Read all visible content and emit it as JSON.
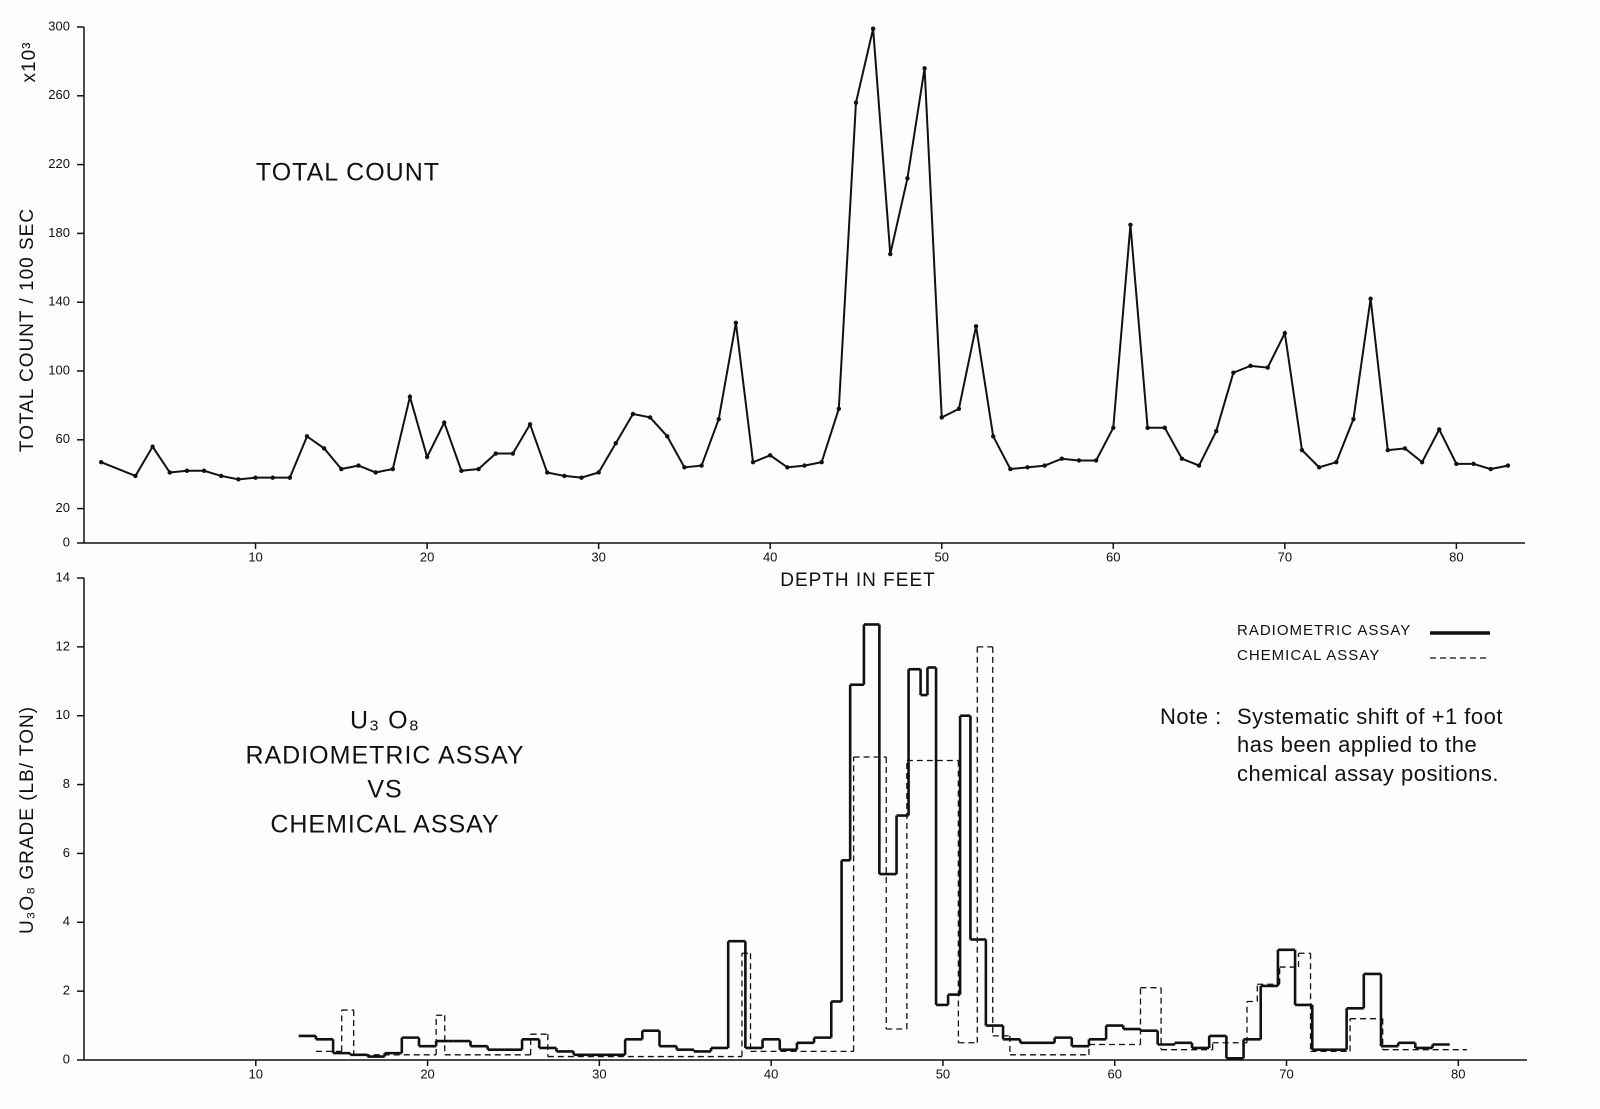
{
  "chart_data": [
    {
      "type": "line",
      "annotation": "TOTAL COUNT",
      "ylabel": "TOTAL COUNT / 100 SEC",
      "ylabel_unit": "x10³",
      "xlabel": "DEPTH IN FEET",
      "xlim": [
        0,
        84
      ],
      "xticks": [
        10,
        20,
        30,
        40,
        50,
        60,
        70,
        80
      ],
      "ylim": [
        0,
        300
      ],
      "yticks": [
        0,
        20,
        60,
        100,
        140,
        180,
        220,
        260,
        300
      ],
      "color": "#111111",
      "x": [
        1,
        3,
        4,
        5,
        6,
        7,
        8,
        9,
        10,
        11,
        12,
        13,
        14,
        15,
        16,
        17,
        18,
        19,
        20,
        21,
        22,
        23,
        24,
        25,
        26,
        27,
        28,
        29,
        30,
        31,
        32,
        33,
        34,
        35,
        36,
        37,
        38,
        39,
        40,
        41,
        42,
        43,
        44,
        45,
        46,
        47,
        48,
        49,
        50,
        51,
        52,
        53,
        54,
        55,
        56,
        57,
        58,
        59,
        60,
        61,
        62,
        63,
        64,
        65,
        66,
        67,
        68,
        69,
        70,
        71,
        72,
        73,
        74,
        75,
        76,
        77,
        78,
        79,
        80,
        81,
        82,
        83
      ],
      "values": [
        47,
        39,
        56,
        41,
        42,
        42,
        39,
        37,
        38,
        38,
        38,
        62,
        55,
        43,
        45,
        41,
        43,
        85,
        50,
        70,
        42,
        43,
        52,
        52,
        69,
        41,
        39,
        38,
        41,
        58,
        75,
        73,
        62,
        44,
        45,
        72,
        128,
        47,
        51,
        44,
        45,
        47,
        78,
        256,
        299,
        168,
        212,
        276,
        73,
        78,
        126,
        62,
        43,
        44,
        45,
        49,
        48,
        48,
        67,
        185,
        67,
        67,
        49,
        45,
        65,
        99,
        103,
        102,
        122,
        54,
        44,
        47,
        72,
        142,
        54,
        55,
        47,
        66,
        46,
        46,
        43,
        45
      ]
    },
    {
      "type": "step",
      "ylabel": "U₃O₈ GRADE (LB/ TON)",
      "annotation_lines": [
        "U₃ O₈",
        "RADIOMETRIC ASSAY",
        "VS",
        "CHEMICAL ASSAY"
      ],
      "note": {
        "label": "Note :",
        "lines": [
          "Systematic shift of +1 foot",
          "has been applied to the",
          "chemical assay positions."
        ]
      },
      "legend": "upper right",
      "xlim": [
        0,
        84
      ],
      "xticks": [
        10,
        20,
        30,
        40,
        50,
        60,
        70,
        80
      ],
      "ylim": [
        0,
        14
      ],
      "yticks": [
        0,
        2,
        4,
        6,
        8,
        10,
        12,
        14
      ],
      "series": [
        {
          "name": "RADIOMETRIC ASSAY",
          "color": "#111111",
          "style": "solid",
          "bins": [
            12.5,
            13.5,
            14.5,
            15.5,
            16.5,
            17.5,
            18.5,
            19.5,
            20.5,
            21.5,
            22.5,
            23.5,
            24.5,
            25.5,
            26.5,
            27.5,
            28.5,
            29.5,
            30.5,
            31.5,
            32.5,
            33.5,
            34.5,
            35.5,
            36.5,
            37.5,
            38.5,
            39.5,
            40.5,
            41.5,
            42.5,
            43.5,
            44.1,
            44.6,
            45.4,
            46.3,
            47.3,
            48.0,
            48.7,
            49.1,
            49.6,
            50.3,
            51.0,
            51.6,
            52.5,
            53.5,
            54.5,
            55.5,
            56.5,
            57.5,
            58.5,
            59.5,
            60.5,
            61.5,
            62.5,
            63.5,
            64.5,
            65.5,
            66.5,
            67.5,
            68.5,
            69.5,
            70.5,
            71.5,
            72.5,
            73.5,
            74.5,
            75.5,
            76.5,
            77.5,
            78.5,
            79.5
          ],
          "values": [
            0.7,
            0.6,
            0.2,
            0.15,
            0.1,
            0.2,
            0.65,
            0.4,
            0.55,
            0.55,
            0.4,
            0.3,
            0.3,
            0.6,
            0.35,
            0.25,
            0.15,
            0.15,
            0.15,
            0.6,
            0.85,
            0.4,
            0.3,
            0.25,
            0.35,
            3.45,
            0.35,
            0.6,
            0.3,
            0.5,
            0.65,
            1.7,
            5.8,
            10.9,
            12.65,
            5.4,
            7.1,
            11.35,
            10.6,
            11.4,
            1.6,
            1.9,
            10.0,
            3.5,
            1.0,
            0.6,
            0.5,
            0.5,
            0.65,
            0.4,
            0.6,
            1.0,
            0.9,
            0.85,
            0.45,
            0.5,
            0.35,
            0.7,
            0.05,
            0.6,
            2.15,
            3.2,
            1.6,
            0.3,
            0.3,
            1.5,
            2.5,
            0.4,
            0.5,
            0.35,
            0.45
          ]
        },
        {
          "name": "CHEMICAL ASSAY",
          "color": "#111111",
          "style": "dashed",
          "bins": [
            13.5,
            15,
            15.7,
            20.5,
            21,
            26,
            27,
            38.3,
            38.8,
            44.8,
            46.7,
            47.9,
            50.9,
            52.0,
            52.9,
            53.9,
            58.5,
            61.5,
            62.7,
            65.7,
            67.7,
            68.3,
            69.6,
            70.7,
            71.4,
            73.7,
            75.6,
            80.5
          ],
          "values": [
            0.25,
            1.45,
            0.15,
            1.3,
            0.15,
            0.75,
            0.1,
            3.1,
            0.25,
            8.8,
            0.9,
            8.7,
            0.5,
            12.0,
            0.7,
            0.15,
            0.45,
            2.1,
            0.3,
            0.5,
            1.7,
            2.2,
            2.7,
            3.1,
            0.25,
            1.2,
            0.3
          ]
        }
      ]
    }
  ]
}
